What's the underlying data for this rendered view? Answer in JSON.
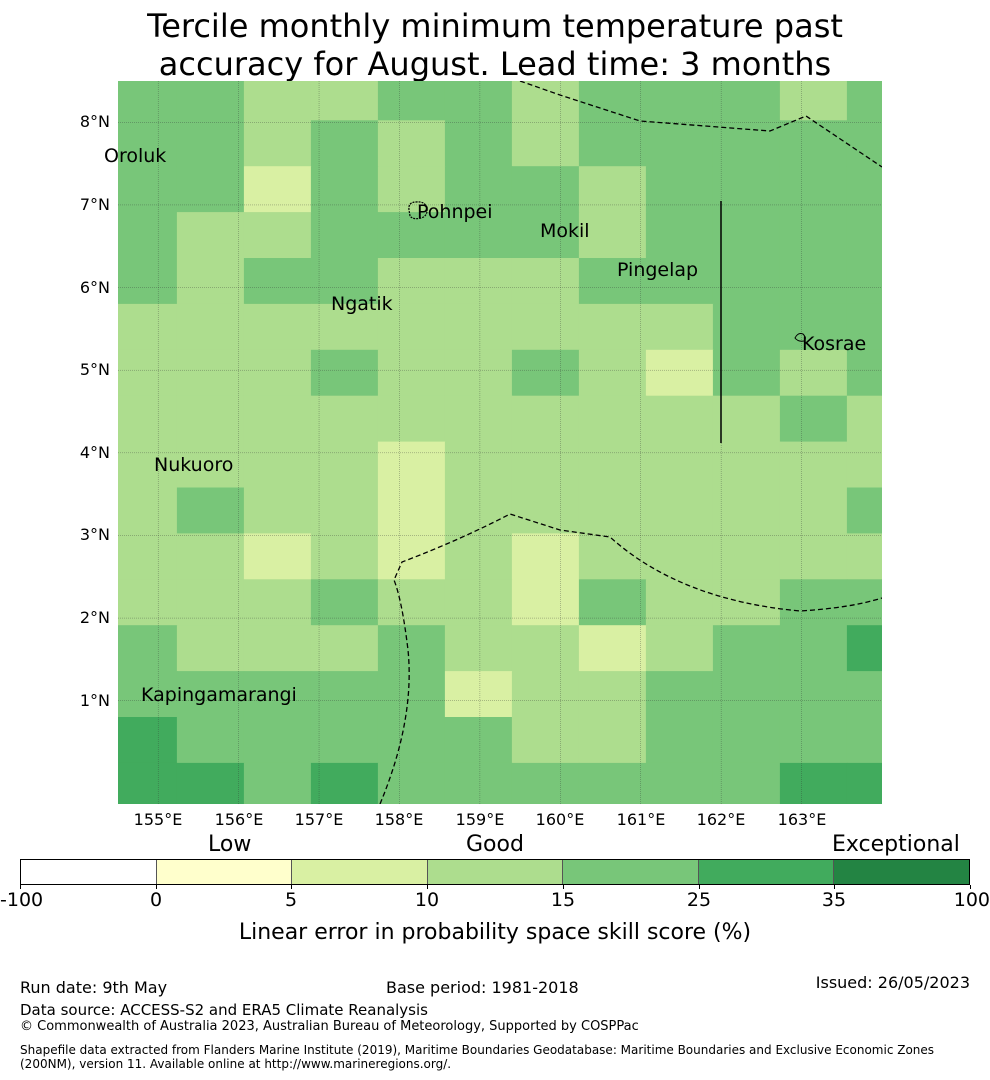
{
  "title_line1": "Tercile monthly minimum temperature past",
  "title_line2": "accuracy for August. Lead time: 3 months",
  "lat_labels": [
    "8°N",
    "7°N",
    "6°N",
    "5°N",
    "4°N",
    "3°N",
    "2°N",
    "1°N"
  ],
  "lon_labels": [
    "155°E",
    "156°E",
    "157°E",
    "158°E",
    "159°E",
    "160°E",
    "161°E",
    "162°E",
    "163°E"
  ],
  "places": [
    {
      "name": "Oroluk",
      "lon": 154.33,
      "lat": 7.59
    },
    {
      "name": "Pohnpei",
      "lon": 158.22,
      "lat": 6.92
    },
    {
      "name": "Mokil",
      "lon": 159.75,
      "lat": 6.68
    },
    {
      "name": "Pingelap",
      "lon": 160.7,
      "lat": 6.21
    },
    {
      "name": "Ngatik",
      "lon": 157.15,
      "lat": 5.8
    },
    {
      "name": "Kosrae",
      "lon": 163.0,
      "lat": 5.32
    },
    {
      "name": "Nukuoro",
      "lon": 154.95,
      "lat": 3.85
    },
    {
      "name": "Kapingamarangi",
      "lon": 154.78,
      "lat": 1.07
    }
  ],
  "colorbar": {
    "category_labels": {
      "low": "Low",
      "good": "Good",
      "exceptional": "Exceptional"
    },
    "tick_labels": [
      "-100",
      "0",
      "5",
      "10",
      "15",
      "25",
      "35",
      "100"
    ],
    "colors": [
      "#ffffff",
      "#ffffcc",
      "#d9f0a3",
      "#addd8e",
      "#78c679",
      "#41ab5d",
      "#238443"
    ],
    "label": "Linear error in probability space skill score (%)"
  },
  "footer": {
    "run_date": "Run date: 9th May",
    "base_period": "Base period: 1981-2018",
    "issued": "Issued: 26/05/2023",
    "data_source": "Data source: ACCESS-S2 and ERA5 Climate Reanalysis",
    "copyright": "© Commonwealth of Australia 2023, Australian Bureau of Meteorology, Supported by COSPPac",
    "shapefile_line1": "Shapefile data extracted from Flanders Marine Institute (2019), Maritime Boundaries Geodatabase: Maritime Boundaries and Exclusive Economic Zones",
    "shapefile_line2": "(200NM), version 11. Available online at http://www.marineregions.org/."
  },
  "chart_data": {
    "type": "heatmap",
    "x_range_lon": [
      154.5,
      164.0
    ],
    "y_range_lat": [
      -0.25,
      8.5
    ],
    "grid_origin": {
      "lon0": 154.5,
      "lat_top": 8.5,
      "dlon": 0.833,
      "dlat": 0.5555
    },
    "bin_edges": [
      -100,
      0,
      5,
      10,
      15,
      25,
      35,
      100
    ],
    "cell_classes": [
      [
        4,
        4,
        3,
        3,
        4,
        4,
        3,
        4,
        4,
        4,
        3,
        4
      ],
      [
        4,
        4,
        3,
        4,
        3,
        4,
        3,
        4,
        4,
        4,
        4,
        4
      ],
      [
        4,
        4,
        2,
        4,
        3,
        4,
        4,
        3,
        4,
        4,
        4,
        4
      ],
      [
        4,
        3,
        3,
        4,
        4,
        4,
        4,
        3,
        4,
        4,
        4,
        4
      ],
      [
        4,
        3,
        4,
        4,
        3,
        3,
        3,
        4,
        4,
        4,
        4,
        4
      ],
      [
        3,
        3,
        3,
        3,
        3,
        3,
        3,
        3,
        3,
        4,
        4,
        4
      ],
      [
        3,
        3,
        3,
        4,
        3,
        3,
        4,
        3,
        2,
        4,
        3,
        4
      ],
      [
        3,
        3,
        3,
        3,
        3,
        3,
        3,
        3,
        3,
        3,
        4,
        3
      ],
      [
        3,
        3,
        3,
        3,
        2,
        3,
        3,
        3,
        3,
        3,
        3,
        3
      ],
      [
        3,
        4,
        3,
        3,
        2,
        3,
        3,
        3,
        3,
        3,
        3,
        4
      ],
      [
        3,
        3,
        2,
        3,
        2,
        3,
        2,
        3,
        3,
        3,
        3,
        3
      ],
      [
        3,
        3,
        3,
        4,
        3,
        3,
        2,
        4,
        3,
        3,
        4,
        4
      ],
      [
        4,
        3,
        3,
        3,
        4,
        3,
        3,
        2,
        3,
        4,
        4,
        5
      ],
      [
        4,
        4,
        4,
        4,
        4,
        2,
        3,
        3,
        4,
        4,
        4,
        4
      ],
      [
        5,
        4,
        4,
        4,
        4,
        4,
        3,
        3,
        4,
        4,
        4,
        4
      ],
      [
        5,
        5,
        4,
        5,
        4,
        4,
        4,
        4,
        4,
        4,
        5,
        5
      ],
      [
        5,
        5,
        4,
        4,
        4,
        4,
        4,
        4,
        4,
        5,
        4,
        5
      ],
      [
        5,
        4,
        4,
        4,
        4,
        3,
        4,
        4,
        4,
        4,
        4,
        4
      ],
      [
        5,
        5,
        4,
        5,
        4,
        4,
        4,
        4,
        4,
        4,
        4,
        4
      ]
    ]
  }
}
